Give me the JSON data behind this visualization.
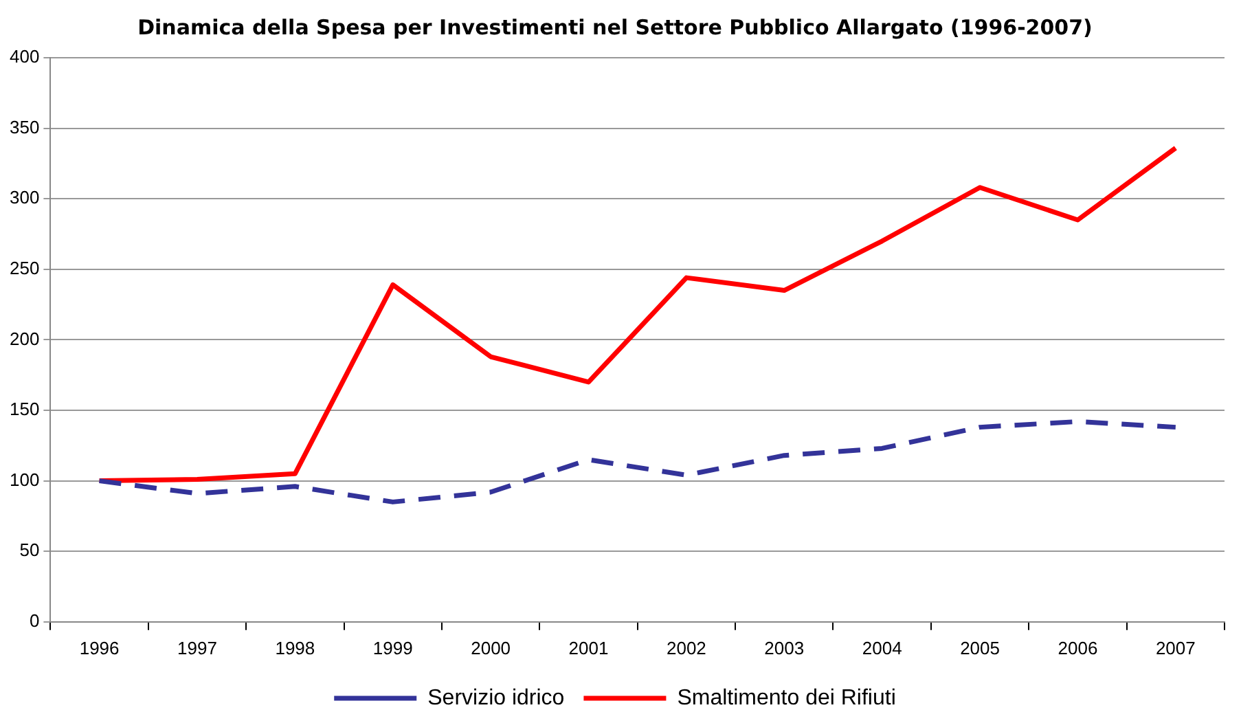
{
  "chart_data": {
    "type": "line",
    "title": "Dinamica della Spesa per Investimenti nel Settore Pubblico Allargato (1996-2007)",
    "categories": [
      "1996",
      "1997",
      "1998",
      "1999",
      "2000",
      "2001",
      "2002",
      "2003",
      "2004",
      "2005",
      "2006",
      "2007"
    ],
    "series": [
      {
        "name": "Servizio idrico",
        "color": "#333399",
        "line_style": "dashed",
        "values": [
          100,
          91,
          96,
          85,
          92,
          115,
          104,
          118,
          123,
          138,
          142,
          138
        ]
      },
      {
        "name": "Smaltimento dei Rifiuti",
        "color": "#ff0000",
        "line_style": "solid",
        "values": [
          100,
          101,
          105,
          239,
          188,
          170,
          244,
          235,
          270,
          308,
          285,
          336
        ]
      }
    ],
    "ylim": [
      0,
      400
    ],
    "yticks": [
      0,
      50,
      100,
      150,
      200,
      250,
      300,
      350,
      400
    ],
    "grid": "y",
    "legend": "bottom",
    "marker": "none"
  }
}
